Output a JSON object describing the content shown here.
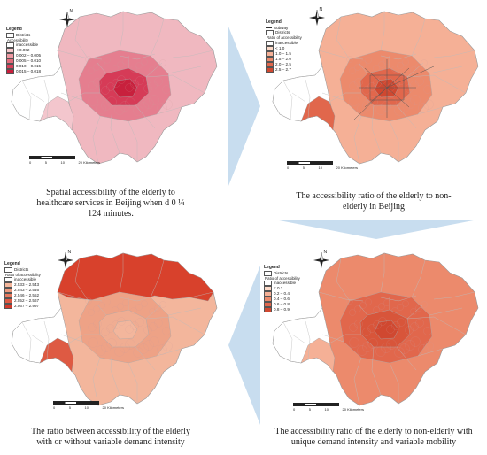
{
  "panels": [
    {
      "id": "a",
      "legend_title": "Legend",
      "legend_items": [
        {
          "type": "box",
          "label": "Districts",
          "color": "#ffffff"
        },
        {
          "type": "sub",
          "label": "Accessibility"
        },
        {
          "type": "box",
          "label": "inaccessible",
          "color": "#ffffff"
        },
        {
          "type": "box",
          "label": "< 0.002",
          "color": "#f7c8cc"
        },
        {
          "type": "box",
          "label": "0.002 – 0.005",
          "color": "#ee98a2"
        },
        {
          "type": "box",
          "label": "0.005 – 0.010",
          "color": "#e36b7b"
        },
        {
          "type": "box",
          "label": "0.010 – 0.015",
          "color": "#d8405a"
        },
        {
          "type": "box",
          "label": "0.015 – 0.018",
          "color": "#c81e3c"
        }
      ],
      "caption": [
        "Spatial accessibility of the elderly to",
        "healthcare services in Beijing when d 0 ¼",
        "124 minutes."
      ],
      "colors": {
        "outer": "#f0b8c0",
        "ring": "#e57e8f",
        "core": "#d63b57",
        "center": "#c8203d",
        "sw": "#f3c6cd"
      }
    },
    {
      "id": "b",
      "legend_title": "Legend",
      "legend_items": [
        {
          "type": "line",
          "label": "Subway"
        },
        {
          "type": "box",
          "label": "Districts",
          "color": "#ffffff"
        },
        {
          "type": "sub",
          "label": "Ratio of accessibility"
        },
        {
          "type": "box",
          "label": "inaccessible",
          "color": "#ffffff"
        },
        {
          "type": "box",
          "label": "< 1.0",
          "color": "#fcd9c8"
        },
        {
          "type": "box",
          "label": "1.0 – 1.5",
          "color": "#f5b096"
        },
        {
          "type": "box",
          "label": "1.5 – 2.0",
          "color": "#ec8a6c"
        },
        {
          "type": "box",
          "label": "2.0 – 2.5",
          "color": "#e1674c"
        },
        {
          "type": "box",
          "label": "2.5 – 2.7",
          "color": "#d04830"
        }
      ],
      "caption": [
        "The accessibility ratio of the elderly to non-",
        "elderly in Beijing"
      ],
      "colors": {
        "outer": "#f5b096",
        "ring": "#ec8a6c",
        "core": "#e1674c",
        "center": "#d04830",
        "sw": "#e1674c"
      }
    },
    {
      "id": "c",
      "legend_title": "Legend",
      "legend_items": [
        {
          "type": "box",
          "label": "Districts",
          "color": "#ffffff"
        },
        {
          "type": "sub",
          "label": "Ratio of accessibility"
        },
        {
          "type": "box",
          "label": "inaccessible",
          "color": "#ffffff"
        },
        {
          "type": "box",
          "label": "2.533 – 2.543",
          "color": "#f5b79c"
        },
        {
          "type": "box",
          "label": "2.543 – 2.546",
          "color": "#ef9a7e"
        },
        {
          "type": "box",
          "label": "2.546 – 2.552",
          "color": "#e77a5f"
        },
        {
          "type": "box",
          "label": "2.552 – 2.567",
          "color": "#de5a43"
        },
        {
          "type": "box",
          "label": "2.567 – 2.997",
          "color": "#d33a2b"
        }
      ],
      "caption": [
        "The ratio between accessibility of the elderly",
        "with or without variable demand intensity"
      ],
      "colors": {
        "outer": "#f3b69c",
        "ring": "#eea286",
        "core": "#f0ad92",
        "center": "#f3b69c",
        "sw": "#de5a43",
        "north": "#d8412c"
      }
    },
    {
      "id": "d",
      "legend_title": "Legend",
      "legend_items": [
        {
          "type": "box",
          "label": "Districts",
          "color": "#ffffff"
        },
        {
          "type": "sub",
          "label": "Ratio of accessibility"
        },
        {
          "type": "box",
          "label": "inaccessible",
          "color": "#ffffff"
        },
        {
          "type": "box",
          "label": "< 0.2",
          "color": "#fcd9c8"
        },
        {
          "type": "box",
          "label": "0.2 – 0.4",
          "color": "#f5b096"
        },
        {
          "type": "box",
          "label": "0.4 – 0.6",
          "color": "#ec8a6c"
        },
        {
          "type": "box",
          "label": "0.6 – 0.8",
          "color": "#e1674c"
        },
        {
          "type": "box",
          "label": "0.8 – 0.9",
          "color": "#d04830"
        }
      ],
      "caption": [
        "The accessibility ratio of the elderly to non-elderly with",
        "unique demand intensity and variable mobility"
      ],
      "colors": {
        "outer": "#ec8a6c",
        "ring": "#e1674c",
        "core": "#d8553a",
        "center": "#d04830",
        "sw": "#f5b096"
      }
    }
  ],
  "north_label": "N",
  "scale": {
    "ticks": [
      "0",
      "5",
      "10",
      "20 Kilometers"
    ]
  }
}
